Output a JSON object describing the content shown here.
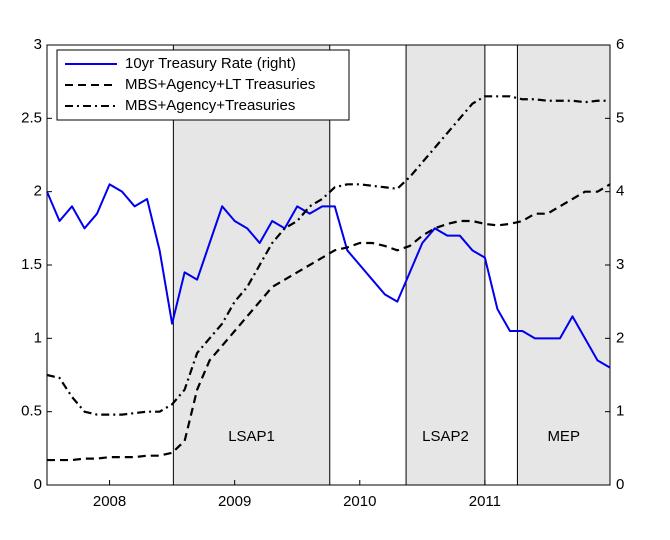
{
  "chart_data": {
    "type": "line",
    "x": [
      2008.0,
      2008.1,
      2008.2,
      2008.3,
      2008.4,
      2008.5,
      2008.6,
      2008.7,
      2008.8,
      2008.9,
      2009.0,
      2009.1,
      2009.2,
      2009.3,
      2009.4,
      2009.5,
      2009.6,
      2009.7,
      2009.8,
      2009.9,
      2010.0,
      2010.1,
      2010.2,
      2010.3,
      2010.4,
      2010.5,
      2010.6,
      2010.7,
      2010.8,
      2010.9,
      2011.0,
      2011.1,
      2011.2,
      2011.3,
      2011.4,
      2011.5,
      2011.6,
      2011.7,
      2011.8,
      2011.9,
      2012.0,
      2012.1,
      2012.2,
      2012.3,
      2012.4,
      2012.5
    ],
    "series": [
      {
        "name": "10yr Treasury Rate (right)",
        "color": "#0000ee",
        "style": "solid",
        "axis": "y2",
        "values": [
          4.0,
          3.6,
          3.8,
          3.5,
          3.7,
          4.1,
          4.0,
          3.8,
          3.9,
          3.2,
          2.2,
          2.9,
          2.8,
          3.3,
          3.8,
          3.6,
          3.5,
          3.3,
          3.6,
          3.5,
          3.8,
          3.7,
          3.8,
          3.8,
          3.2,
          3.0,
          2.8,
          2.6,
          2.5,
          2.9,
          3.3,
          3.5,
          3.4,
          3.4,
          3.2,
          3.1,
          2.4,
          2.1,
          2.1,
          2.0,
          2.0,
          2.0,
          2.3,
          2.0,
          1.7,
          1.6
        ]
      },
      {
        "name": "MBS+Agency+LT Treasuries",
        "color": "#000000",
        "style": "dashed",
        "values": [
          0.17,
          0.17,
          0.17,
          0.18,
          0.18,
          0.19,
          0.19,
          0.19,
          0.2,
          0.2,
          0.22,
          0.3,
          0.65,
          0.85,
          0.95,
          1.05,
          1.15,
          1.25,
          1.35,
          1.4,
          1.45,
          1.5,
          1.55,
          1.6,
          1.62,
          1.65,
          1.65,
          1.63,
          1.6,
          1.63,
          1.7,
          1.75,
          1.78,
          1.8,
          1.8,
          1.78,
          1.77,
          1.78,
          1.8,
          1.85,
          1.85,
          1.9,
          1.95,
          2.0,
          2.0,
          2.05
        ]
      },
      {
        "name": "MBS+Agency+Treasuries",
        "color": "#000000",
        "style": "dashdot",
        "values": [
          0.75,
          0.73,
          0.6,
          0.5,
          0.48,
          0.48,
          0.48,
          0.49,
          0.5,
          0.5,
          0.55,
          0.65,
          0.9,
          1.0,
          1.1,
          1.25,
          1.35,
          1.5,
          1.65,
          1.75,
          1.8,
          1.9,
          1.95,
          2.03,
          2.05,
          2.05,
          2.04,
          2.03,
          2.02,
          2.1,
          2.2,
          2.3,
          2.4,
          2.5,
          2.6,
          2.65,
          2.65,
          2.65,
          2.63,
          2.63,
          2.62,
          2.62,
          2.62,
          2.61,
          2.62,
          2.62
        ]
      }
    ],
    "regions": [
      {
        "x0": 2009.01,
        "x1": 2010.26,
        "label": "LSAP1"
      },
      {
        "x0": 2010.87,
        "x1": 2011.5,
        "label": "LSAP2"
      },
      {
        "x0": 2011.76,
        "x1": 2012.5,
        "label": "MEP"
      }
    ],
    "xlim": [
      2008.0,
      2012.5
    ],
    "xticks": [
      {
        "value": 2008.5,
        "label": "2008"
      },
      {
        "value": 2009.5,
        "label": "2009"
      },
      {
        "value": 2010.5,
        "label": "2010"
      },
      {
        "value": 2011.5,
        "label": "2011"
      }
    ],
    "ylim": [
      0,
      3
    ],
    "yticks": [
      0,
      0.5,
      1,
      1.5,
      2,
      2.5,
      3
    ],
    "y2lim": [
      0,
      6
    ],
    "y2ticks": [
      0,
      1,
      2,
      3,
      4,
      5,
      6
    ],
    "legend": "top-left"
  }
}
